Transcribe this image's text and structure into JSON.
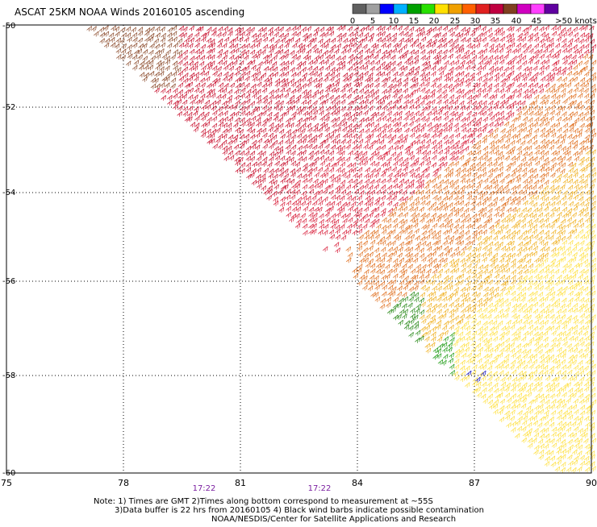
{
  "title": "ASCAT 25KM NOAA Winds 20160105 ascending",
  "legend": {
    "colors": [
      "#606060",
      "#a0a0a0",
      "#0000ff",
      "#00b0ff",
      "#00a000",
      "#28e000",
      "#ffe000",
      "#f0a000",
      "#ff6000",
      "#e02020",
      "#c00040",
      "#804020",
      "#d000c0",
      "#ff40ff",
      "#6000a0"
    ],
    "labels": [
      "0",
      "5",
      "10",
      "15",
      "20",
      "25",
      "30",
      "35",
      "40",
      "45",
      ">50 knots"
    ]
  },
  "axes": {
    "lon_ticks": [
      "75",
      "78",
      "81",
      "84",
      "87",
      "90"
    ],
    "lat_ticks": [
      "-50",
      "-52",
      "-54",
      "-56",
      "-58",
      "-60"
    ],
    "lon_range": [
      75,
      90
    ],
    "lat_range": [
      -50,
      -60
    ]
  },
  "times": [
    {
      "label": "17:22",
      "lon": 80.05
    },
    {
      "label": "17:22",
      "lon": 82.95
    }
  ],
  "notes": [
    "Note: 1) Times are GMT 2)Times along bottom correspond to measurement at ~55S",
    "3)Data buffer is 22 hrs from 20160105 4) Black wind barbs indicate possible contamination",
    "NOAA/NESDIS/Center for Satellite Applications and Research"
  ]
}
